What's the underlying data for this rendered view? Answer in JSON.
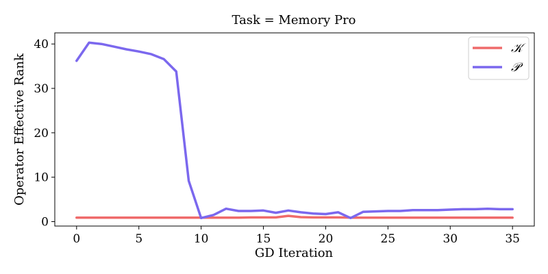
{
  "chart_data": {
    "type": "line",
    "title": "Task = Memory Pro",
    "xlabel": "GD Iteration",
    "ylabel": "Operator Effective Rank",
    "xlim": [
      -1.75,
      36.75
    ],
    "ylim": [
      -1.0,
      42.5
    ],
    "xticks": [
      0,
      5,
      10,
      15,
      20,
      25,
      30,
      35
    ],
    "yticks": [
      0,
      10,
      20,
      30,
      40
    ],
    "grid": false,
    "legend_position": "top-right",
    "series": [
      {
        "name": "𝒦",
        "color": "#ef6b6b",
        "x": [
          0,
          1,
          2,
          3,
          4,
          5,
          6,
          7,
          8,
          9,
          10,
          11,
          12,
          13,
          14,
          15,
          16,
          17,
          18,
          19,
          20,
          21,
          22,
          23,
          24,
          25,
          26,
          27,
          28,
          29,
          30,
          31,
          32,
          33,
          34,
          35
        ],
        "y": [
          0.9,
          0.9,
          0.9,
          0.9,
          0.9,
          0.9,
          0.9,
          0.9,
          0.9,
          0.9,
          0.9,
          0.9,
          0.9,
          0.9,
          0.95,
          0.95,
          0.95,
          1.3,
          1.0,
          0.95,
          0.95,
          0.95,
          0.9,
          0.9,
          0.9,
          0.9,
          0.9,
          0.9,
          0.9,
          0.9,
          0.9,
          0.9,
          0.9,
          0.9,
          0.9,
          0.9
        ]
      },
      {
        "name": "𝒫",
        "color": "#7b68ee",
        "x": [
          0,
          1,
          2,
          3,
          4,
          5,
          6,
          7,
          8,
          9,
          10,
          11,
          12,
          13,
          14,
          15,
          16,
          17,
          18,
          19,
          20,
          21,
          22,
          23,
          24,
          25,
          26,
          27,
          28,
          29,
          30,
          31,
          32,
          33,
          34,
          35
        ],
        "y": [
          36.2,
          40.3,
          40.0,
          39.4,
          38.8,
          38.3,
          37.7,
          36.6,
          33.8,
          9.2,
          0.8,
          1.5,
          2.9,
          2.4,
          2.4,
          2.5,
          2.0,
          2.5,
          2.1,
          1.8,
          1.7,
          2.1,
          0.8,
          2.2,
          2.3,
          2.4,
          2.4,
          2.6,
          2.6,
          2.6,
          2.7,
          2.8,
          2.8,
          2.9,
          2.8,
          2.8
        ]
      }
    ]
  }
}
